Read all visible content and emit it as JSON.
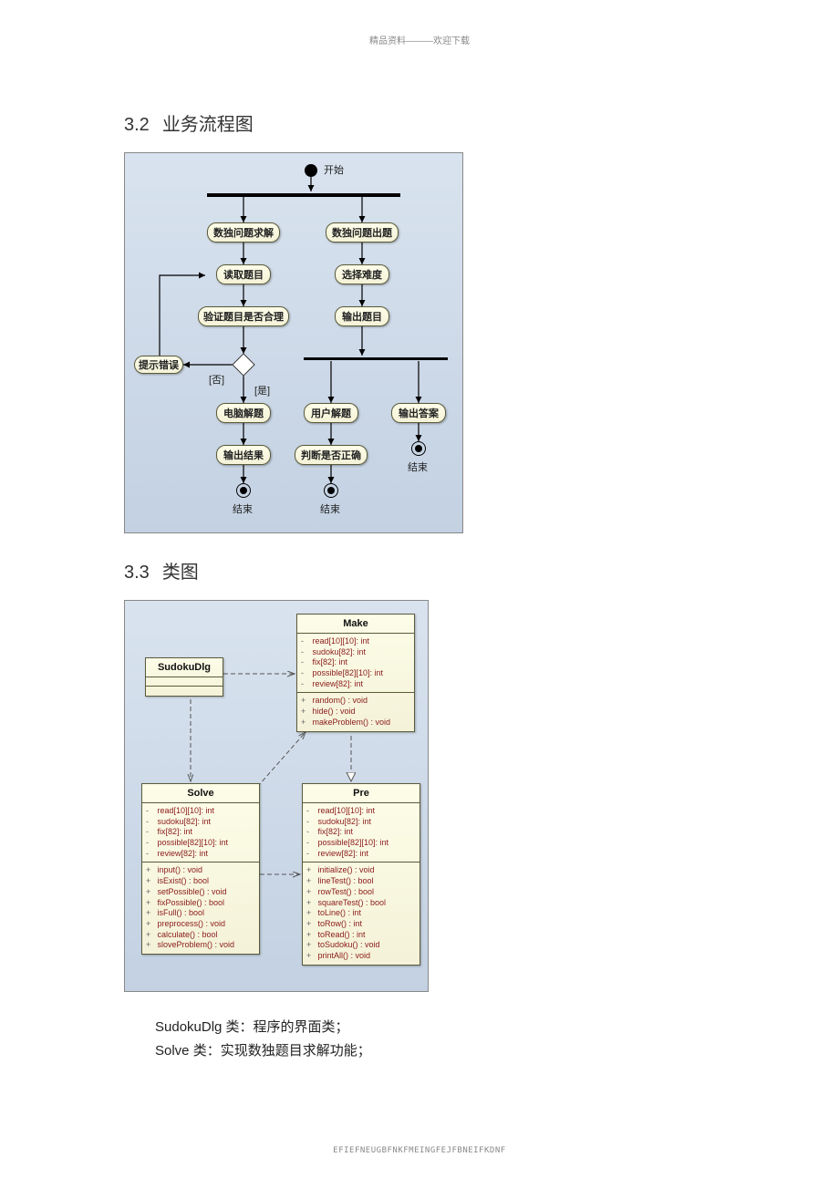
{
  "header_text": "精品资料———欢迎下载",
  "footer_text": "EFIEFNEUGBFNKFMEINGFEJFBNEIFKDNF",
  "sections": {
    "s1": {
      "num": "3.2",
      "title": "业务流程图"
    },
    "s2": {
      "num": "3.3",
      "title": "类图"
    }
  },
  "flow": {
    "bg_top": "#d9e3ef",
    "bg_bottom": "#c3d1e2",
    "node_fill": "#fdfde8",
    "node_border": "#5a5a3a",
    "arrow_color": "#000000",
    "bar_color": "#000000",
    "start_label": "开始",
    "nodes": {
      "n_solve": "数独问题求解",
      "n_make": "数独问题出题",
      "n_read": "读取题目",
      "n_check": "验证题目是否合理",
      "n_err": "提示错误",
      "n_comp": "电脑解题",
      "n_out1": "输出结果",
      "n_end1": "结束",
      "n_diff": "选择难度",
      "n_outq": "输出题目",
      "n_user": "用户解题",
      "n_outa": "输出答案",
      "n_judge": "判断是否正确",
      "n_end2": "结束",
      "n_end3": "结束"
    },
    "branch_no": "[否]",
    "branch_yes": "[是]"
  },
  "classdiag": {
    "bg_top": "#d9e3ef",
    "bg_bottom": "#c3d1e2",
    "box_fill": "#fdfde8",
    "box_border": "#5a5a3a",
    "member_color": "#8a1a1a",
    "dash_color": "#555555",
    "classes": {
      "SudokuDlg": {
        "name": "SudokuDlg",
        "attrs": [],
        "ops": []
      },
      "Make": {
        "name": "Make",
        "attrs": [
          {
            "v": "-",
            "t": "read[10][10]: int"
          },
          {
            "v": "-",
            "t": "sudoku[82]: int"
          },
          {
            "v": "-",
            "t": "fix[82]: int"
          },
          {
            "v": "-",
            "t": "possible[82][10]: int"
          },
          {
            "v": "-",
            "t": "review[82]: int"
          }
        ],
        "ops": [
          {
            "v": "+",
            "t": "random() : void"
          },
          {
            "v": "+",
            "t": "hide() : void"
          },
          {
            "v": "+",
            "t": "makeProblem() : void"
          }
        ]
      },
      "Solve": {
        "name": "Solve",
        "attrs": [
          {
            "v": "-",
            "t": "read[10][10]: int"
          },
          {
            "v": "-",
            "t": "sudoku[82]: int"
          },
          {
            "v": "-",
            "t": "fix[82]: int"
          },
          {
            "v": "-",
            "t": "possible[82][10]: int"
          },
          {
            "v": "-",
            "t": "review[82]: int"
          }
        ],
        "ops": [
          {
            "v": "+",
            "t": "input() : void"
          },
          {
            "v": "+",
            "t": "isExist() : bool"
          },
          {
            "v": "+",
            "t": "setPossible() : void"
          },
          {
            "v": "+",
            "t": "fixPossible() : bool"
          },
          {
            "v": "+",
            "t": "isFull() : bool"
          },
          {
            "v": "+",
            "t": "preprocess() : void"
          },
          {
            "v": "+",
            "t": "calculate() : bool"
          },
          {
            "v": "+",
            "t": "sloveProblem() : void"
          }
        ]
      },
      "Pre": {
        "name": "Pre",
        "attrs": [
          {
            "v": "-",
            "t": "read[10][10]: int"
          },
          {
            "v": "-",
            "t": "sudoku[82]: int"
          },
          {
            "v": "-",
            "t": "fix[82]: int"
          },
          {
            "v": "-",
            "t": "possible[82][10]: int"
          },
          {
            "v": "-",
            "t": "review[82]: int"
          }
        ],
        "ops": [
          {
            "v": "+",
            "t": "initialize() : void"
          },
          {
            "v": "+",
            "t": "lineTest() : bool"
          },
          {
            "v": "+",
            "t": "rowTest() : bool"
          },
          {
            "v": "+",
            "t": "squareTest() : bool"
          },
          {
            "v": "+",
            "t": "toLine() : int"
          },
          {
            "v": "+",
            "t": "toRow() : int"
          },
          {
            "v": "+",
            "t": "toRead() : int"
          },
          {
            "v": "+",
            "t": "toSudoku() : void"
          },
          {
            "v": "+",
            "t": "printAll() : void"
          }
        ]
      }
    }
  },
  "body_lines": {
    "l1": "SudokuDlg 类：程序的界面类；",
    "l2": "Solve 类：实现数独题目求解功能；"
  }
}
